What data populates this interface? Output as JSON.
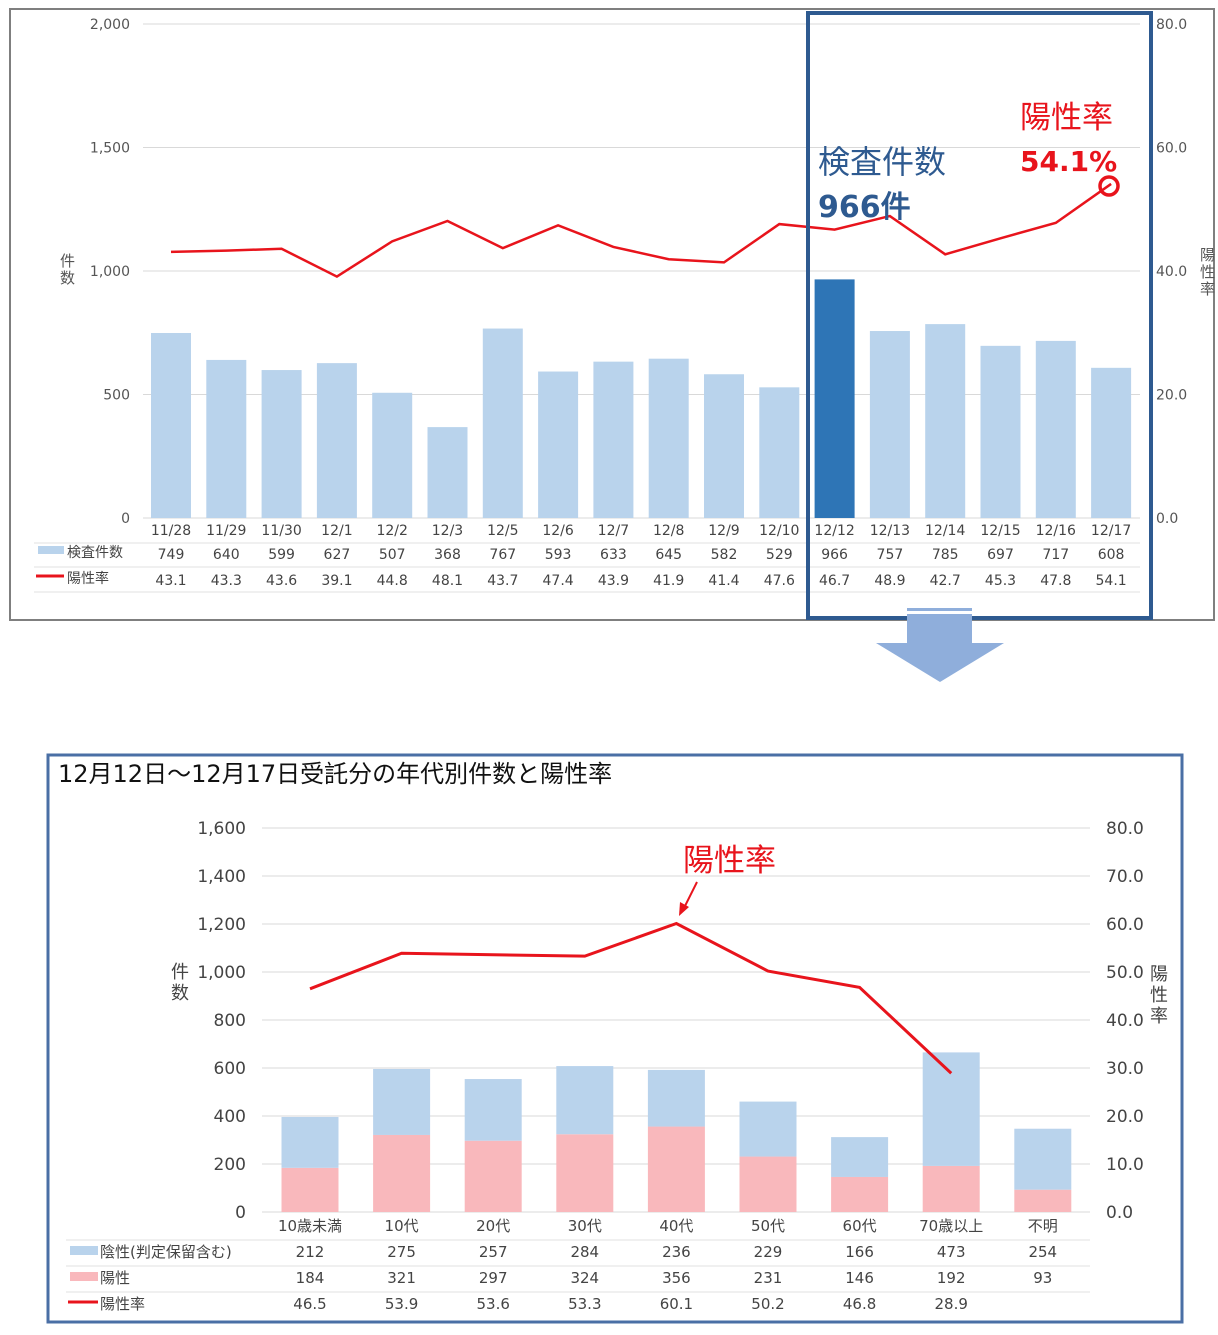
{
  "chart_data": [
    {
      "type": "bar",
      "categories": [
        "11/28",
        "11/29",
        "11/30",
        "12/1",
        "12/2",
        "12/3",
        "12/5",
        "12/6",
        "12/7",
        "12/8",
        "12/9",
        "12/10",
        "12/12",
        "12/13",
        "12/14",
        "12/15",
        "12/16",
        "12/17"
      ],
      "series": [
        {
          "name": "検査件数",
          "type": "bar",
          "axis": "left",
          "color": "#b9d3ec",
          "values": [
            749,
            640,
            599,
            627,
            507,
            368,
            767,
            593,
            633,
            645,
            582,
            529,
            966,
            757,
            785,
            697,
            717,
            608
          ],
          "labels": [
            "749",
            "640",
            "599",
            "627",
            "507",
            "368",
            "767",
            "593",
            "633",
            "645",
            "582",
            "529",
            "966",
            "757",
            "785",
            "697",
            "717",
            "608"
          ]
        },
        {
          "name": "陽性率",
          "type": "line",
          "axis": "right",
          "color": "#e8141c",
          "values": [
            43.1,
            43.3,
            43.6,
            39.1,
            44.8,
            48.1,
            43.7,
            47.4,
            43.9,
            41.9,
            41.4,
            47.6,
            46.7,
            48.9,
            42.7,
            45.3,
            47.8,
            54.1
          ],
          "labels": [
            "43.1",
            "43.3",
            "43.6",
            "39.1",
            "44.8",
            "48.1",
            "43.7",
            "47.4",
            "43.9",
            "41.9",
            "41.4",
            "47.6",
            "46.7",
            "48.9",
            "42.7",
            "45.3",
            "47.8",
            "54.1"
          ]
        }
      ],
      "highlight_index": 12,
      "highlight_color": "#2e75b6",
      "ylim": [
        0,
        2000
      ],
      "y_ticks": [
        "2,000",
        "1,500",
        "1,000",
        "500",
        "0"
      ],
      "y2lim": [
        0,
        80
      ],
      "y2_ticks": [
        "80.0",
        "60.0",
        "40.0",
        "20.0",
        "0.0"
      ],
      "ylabel": "件数",
      "y2label": "陽性率",
      "annotations": {
        "count_title": "検査件数",
        "count_value": "966件",
        "rate_title": "陽性率",
        "rate_value": "54.1%"
      }
    },
    {
      "type": "bar",
      "stacked": true,
      "title": "12月12日～12月17日受託分の年代別件数と陽性率",
      "categories": [
        "10歳未満",
        "10代",
        "20代",
        "30代",
        "40代",
        "50代",
        "60代",
        "70歳以上",
        "不明"
      ],
      "series": [
        {
          "name": "陽性",
          "type": "bar",
          "axis": "left",
          "color": "#f9b8bc",
          "values": [
            184,
            321,
            297,
            324,
            356,
            231,
            146,
            192,
            93
          ],
          "labels": [
            "184",
            "321",
            "297",
            "324",
            "356",
            "231",
            "146",
            "192",
            "93"
          ]
        },
        {
          "name": "陰性(判定保留含む)",
          "type": "bar",
          "axis": "left",
          "color": "#b9d3ec",
          "values": [
            212,
            275,
            257,
            284,
            236,
            229,
            166,
            473,
            254
          ],
          "labels": [
            "212",
            "275",
            "257",
            "284",
            "236",
            "229",
            "166",
            "473",
            "254"
          ]
        },
        {
          "name": "陽性率",
          "type": "line",
          "axis": "right",
          "color": "#e8141c",
          "values": [
            46.5,
            53.9,
            53.6,
            53.3,
            60.1,
            50.2,
            46.8,
            28.9,
            null
          ],
          "labels": [
            "46.5",
            "53.9",
            "53.6",
            "53.3",
            "60.1",
            "50.2",
            "46.8",
            "28.9",
            ""
          ]
        }
      ],
      "ylim": [
        0,
        1600
      ],
      "y_ticks": [
        "1,600",
        "1,400",
        "1,200",
        "1,000",
        "800",
        "600",
        "400",
        "200",
        "0"
      ],
      "y2lim": [
        0,
        80
      ],
      "y2_ticks": [
        "80.0",
        "70.0",
        "60.0",
        "50.0",
        "40.0",
        "30.0",
        "20.0",
        "10.0",
        "0.0"
      ],
      "ylabel": "件数",
      "y2label": "陽性率",
      "annotations": {
        "rate_title": "陽性率"
      }
    }
  ]
}
